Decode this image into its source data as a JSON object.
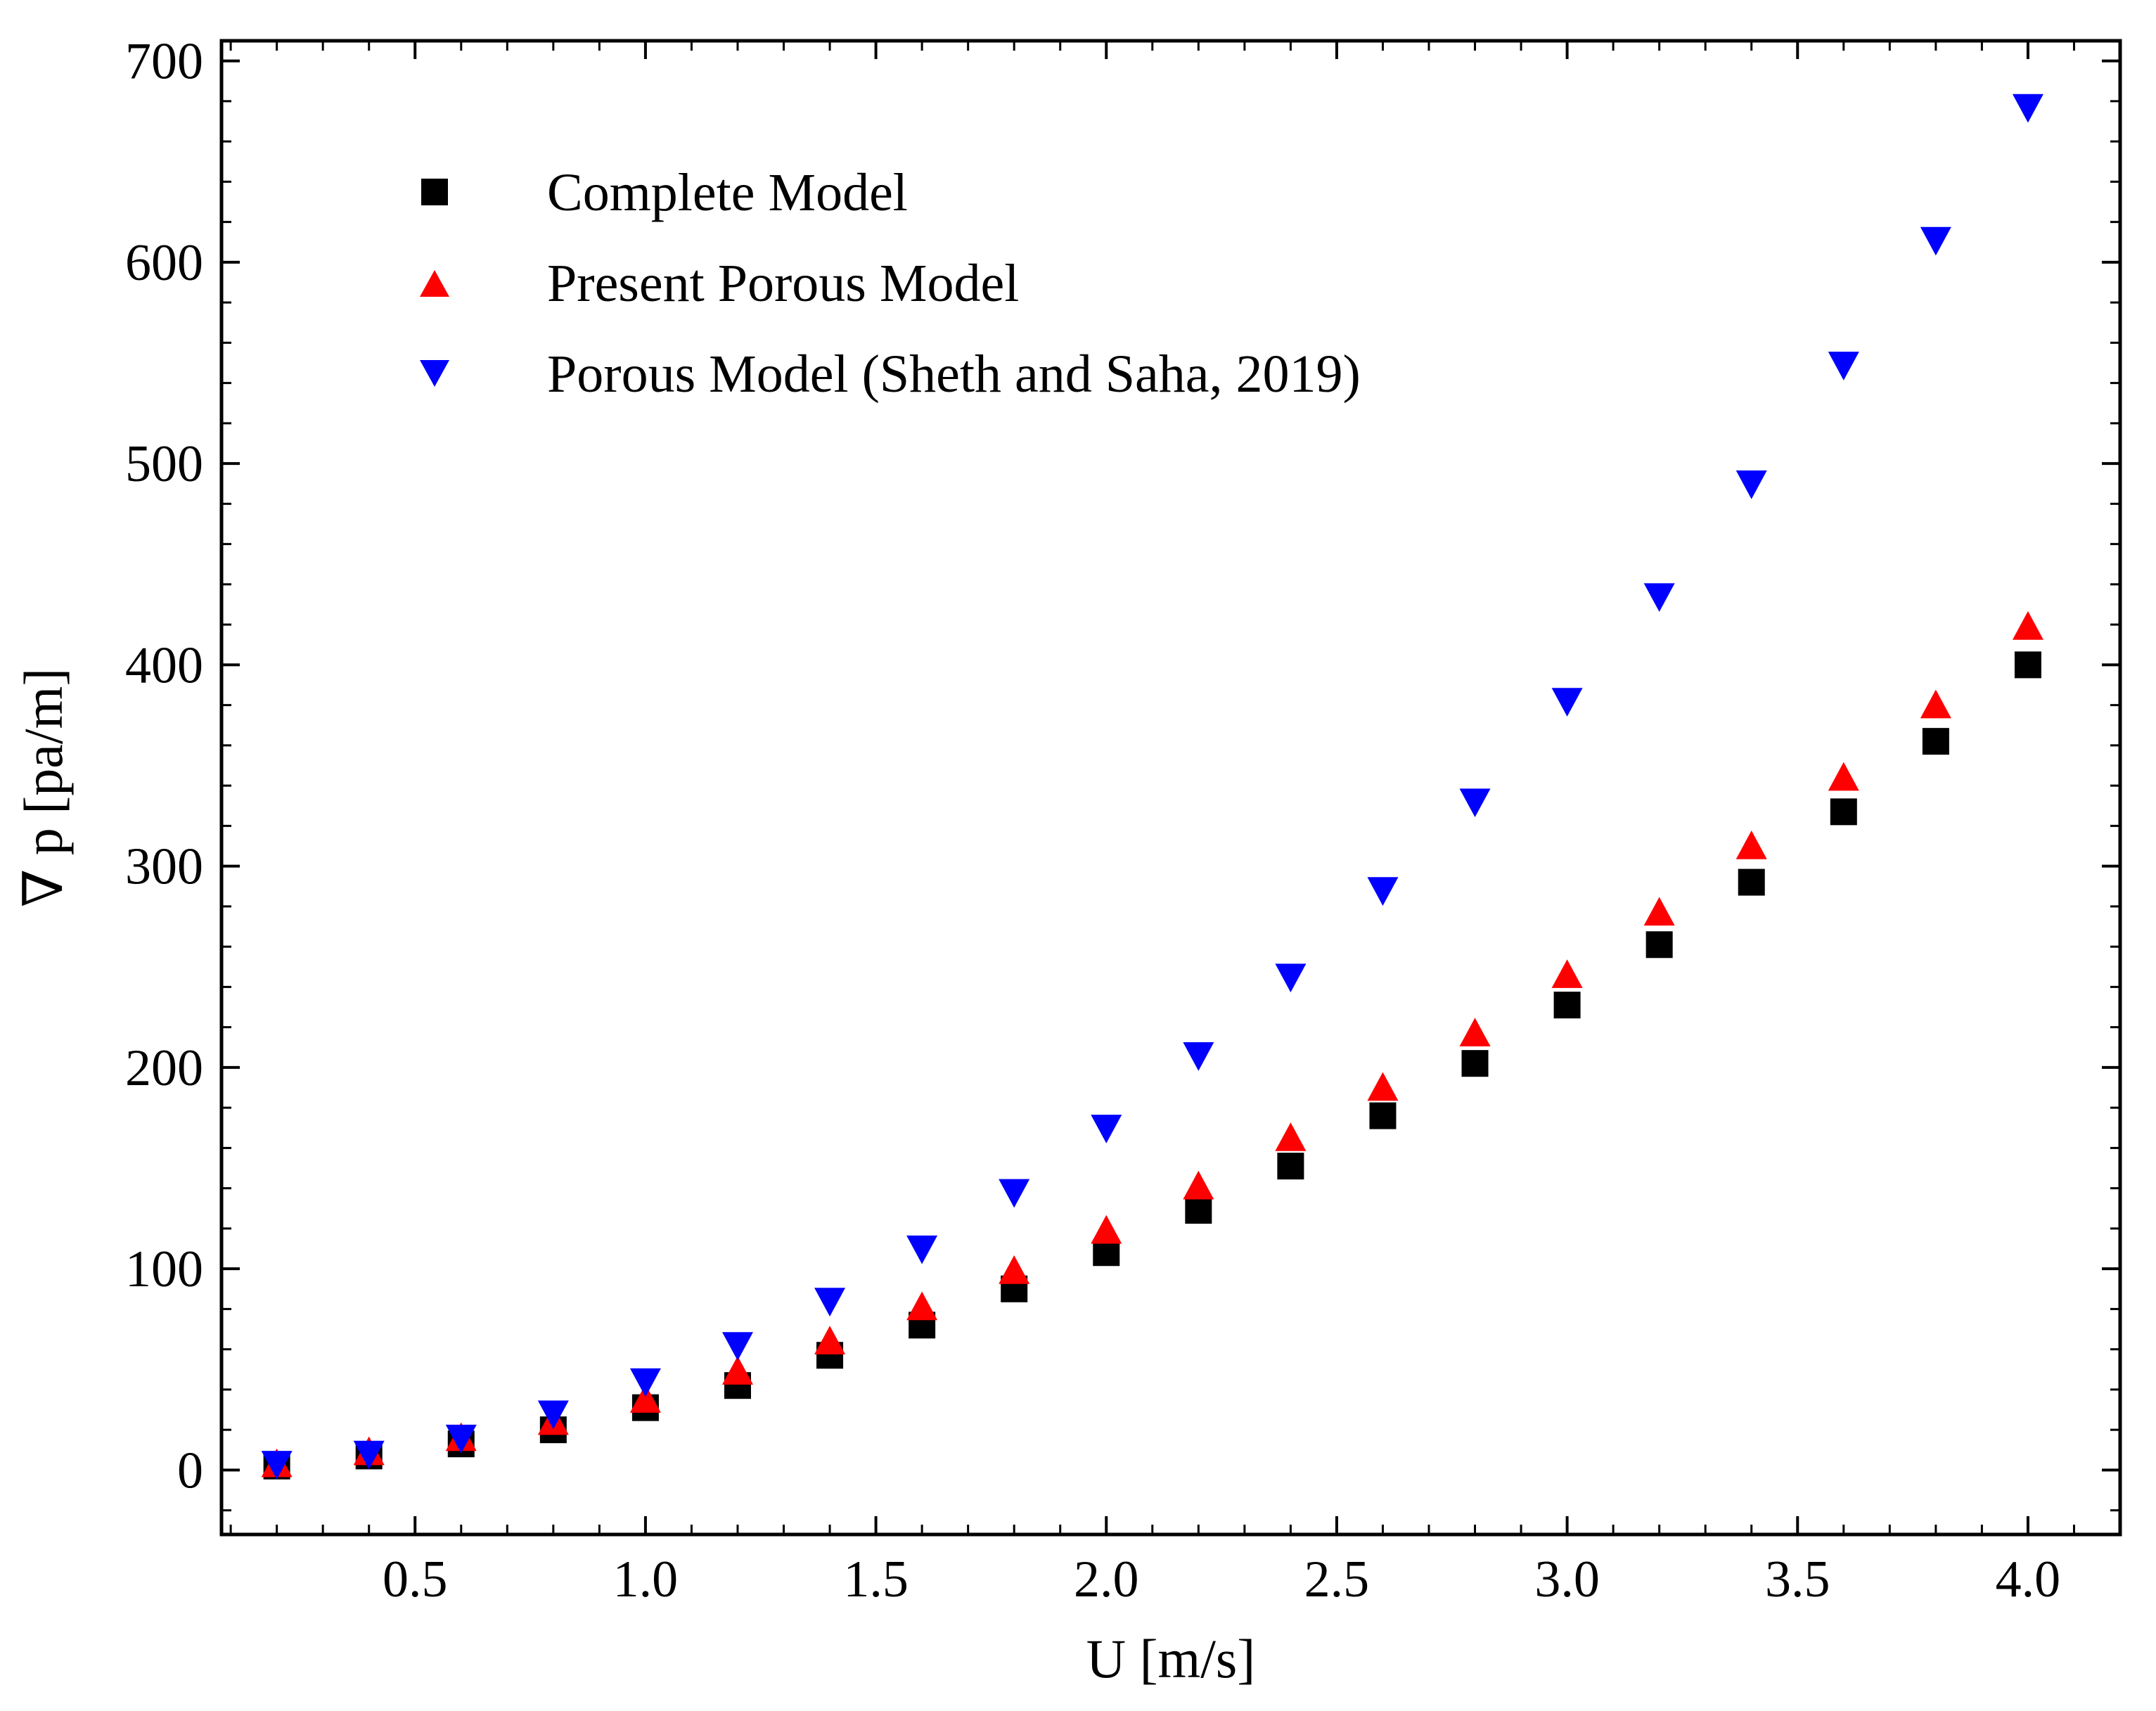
{
  "chart_data": {
    "type": "scatter",
    "title": "",
    "xlabel": "U [m/s]",
    "ylabel": "∇ p [pa/m]",
    "xlim": [
      0.08,
      4.2
    ],
    "ylim": [
      -32,
      710
    ],
    "x_ticks": [
      0.5,
      1.0,
      1.5,
      2.0,
      2.5,
      3.0,
      3.5,
      4.0
    ],
    "x_tick_labels": [
      "0.5",
      "1.0",
      "1.5",
      "2.0",
      "2.5",
      "3.0",
      "3.5",
      "4.0"
    ],
    "y_ticks": [
      0,
      100,
      200,
      300,
      400,
      500,
      600,
      700
    ],
    "y_tick_labels": [
      "0",
      "100",
      "200",
      "300",
      "400",
      "500",
      "600",
      "700"
    ],
    "grid": false,
    "legend_position": "top-left",
    "x": [
      0.2,
      0.4,
      0.6,
      0.8,
      1.0,
      1.2,
      1.4,
      1.6,
      1.8,
      2.0,
      2.2,
      2.4,
      2.6,
      2.8,
      3.0,
      3.2,
      3.4,
      3.6,
      3.8,
      4.0
    ],
    "series": [
      {
        "name": "Complete Model",
        "marker": "square",
        "color": "#000000",
        "values": [
          2,
          7,
          13,
          20,
          31,
          42,
          57,
          72,
          90,
          108,
          129,
          151,
          176,
          202,
          231,
          261,
          292,
          327,
          362,
          400
        ]
      },
      {
        "name": "Present Porous Model",
        "marker": "triangle-up",
        "color": "#ff0000",
        "values": [
          3,
          9,
          16,
          24,
          35,
          49,
          64,
          81,
          99,
          119,
          141,
          165,
          190,
          217,
          246,
          277,
          310,
          344,
          380,
          419
        ]
      },
      {
        "name": "Porous Model (Sheth and Saha, 2019)",
        "marker": "triangle-down",
        "color": "#0000ff",
        "values": [
          3,
          8,
          16,
          28,
          44,
          62,
          84,
          110,
          138,
          170,
          206,
          245,
          288,
          332,
          382,
          434,
          490,
          549,
          611,
          677
        ]
      }
    ]
  }
}
